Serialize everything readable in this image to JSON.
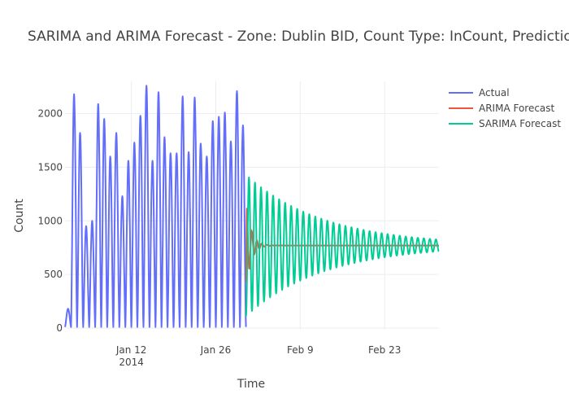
{
  "chart_data": {
    "type": "line",
    "title": "SARIMA and ARIMA Forecast - Zone: Dublin BID, Count Type: InCount, Prediction Inte",
    "xlabel": "Time",
    "ylabel": "Count",
    "x_range": [
      "2014-01-01",
      "2014-03-04"
    ],
    "x_ticks": [
      {
        "date": "2014-01-12",
        "label": "Jan 12",
        "sublabel": "2014"
      },
      {
        "date": "2014-01-26",
        "label": "Jan 26",
        "sublabel": ""
      },
      {
        "date": "2014-02-09",
        "label": "Feb 9",
        "sublabel": ""
      },
      {
        "date": "2014-02-23",
        "label": "Feb 23",
        "sublabel": ""
      }
    ],
    "ylim": [
      0,
      2300
    ],
    "y_ticks": [
      0,
      500,
      1000,
      1500,
      2000
    ],
    "legend_position": "top-right",
    "series": [
      {
        "name": "Actual",
        "color": "#636efa",
        "start": "2014-01-01",
        "end": "2014-01-31",
        "base": 10,
        "daily_peaks": [
          180,
          2180,
          1820,
          950,
          1000,
          2090,
          1950,
          1600,
          1820,
          1230,
          1560,
          1730,
          1980,
          2260,
          1560,
          2200,
          1780,
          1630,
          1630,
          2160,
          1640,
          2150,
          1720,
          1600,
          1930,
          1970,
          2010,
          1740,
          2210,
          1890
        ]
      },
      {
        "name": "ARIMA Forecast",
        "color": "#ef553b",
        "start": "2014-01-31",
        "end": "2014-03-04",
        "initial": 430,
        "peak": 1130,
        "level": 770,
        "decay_days": 2.5
      },
      {
        "name": "SARIMA Forecast",
        "color": "#00cc96",
        "start": "2014-01-31",
        "end": "2014-03-04",
        "center": 770,
        "initial_amplitude": 660,
        "final_amplitude": 55
      }
    ]
  }
}
